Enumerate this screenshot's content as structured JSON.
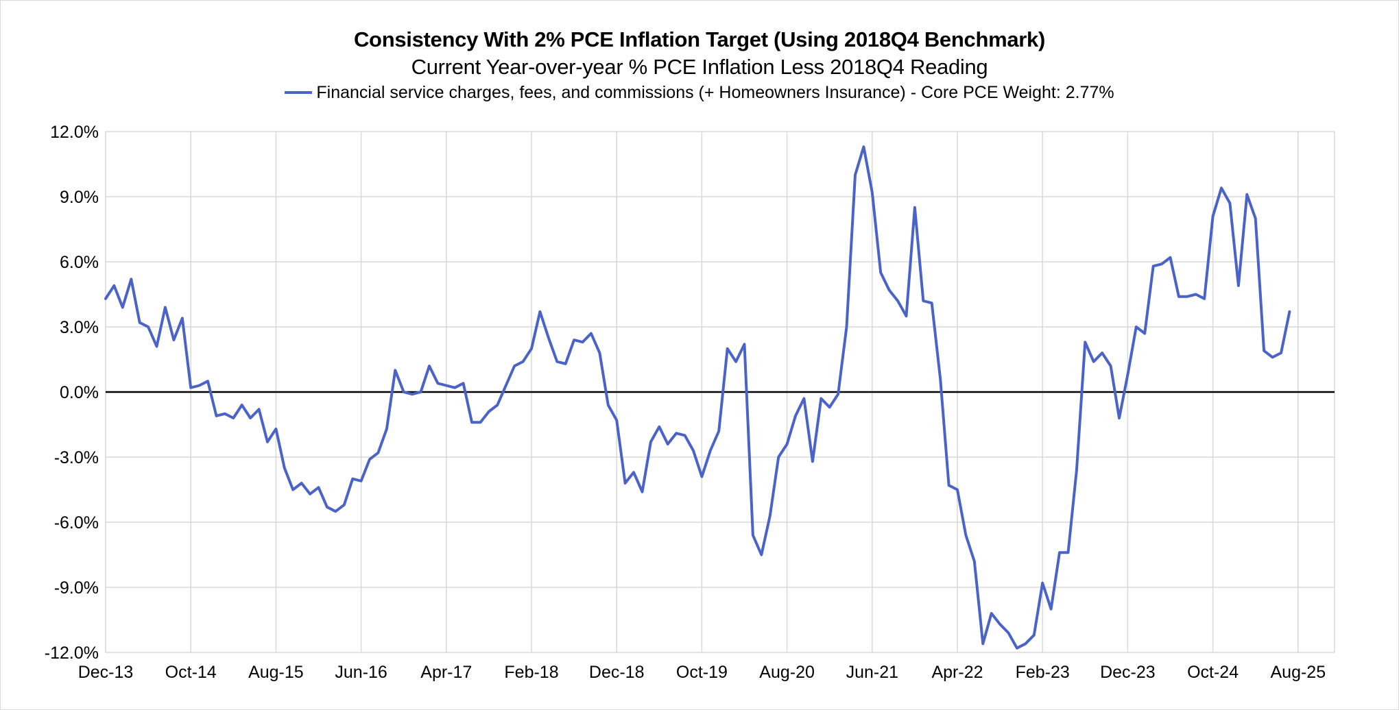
{
  "chart_data": {
    "type": "line",
    "title": "Consistency With 2% PCE Inflation Target (Using 2018Q4 Benchmark)",
    "subtitle": "Current Year-over-year % PCE Inflation Less 2018Q4 Reading",
    "xlabel": "",
    "ylabel": "",
    "ylim": [
      -12,
      12
    ],
    "y_ticks": [
      "12.0%",
      "9.0%",
      "6.0%",
      "3.0%",
      "0.0%",
      "-3.0%",
      "-6.0%",
      "-9.0%",
      "-12.0%"
    ],
    "x_ticks": [
      "Dec-13",
      "Oct-14",
      "Aug-15",
      "Jun-16",
      "Apr-17",
      "Feb-18",
      "Dec-18",
      "Oct-19",
      "Aug-20",
      "Jun-21",
      "Apr-22",
      "Feb-23",
      "Dec-23",
      "Oct-24",
      "Aug-25"
    ],
    "grid": true,
    "legend_position": "top",
    "series": [
      {
        "name": "Financial service charges, fees, and commissions (+ Homeowners Insurance) - Core PCE Weight: 2.77%",
        "color": "#4a63c9",
        "start": "Dec-13",
        "frequency": "monthly",
        "values": [
          4.3,
          4.9,
          3.9,
          5.2,
          3.2,
          3.0,
          2.1,
          3.9,
          2.4,
          3.4,
          0.2,
          0.3,
          0.5,
          -1.1,
          -1.0,
          -1.2,
          -0.6,
          -1.2,
          -0.8,
          -2.3,
          -1.7,
          -3.5,
          -4.5,
          -4.2,
          -4.7,
          -4.4,
          -5.3,
          -5.5,
          -5.2,
          -4.0,
          -4.1,
          -3.1,
          -2.8,
          -1.7,
          1.0,
          0.0,
          -0.1,
          0.0,
          1.2,
          0.4,
          0.3,
          0.2,
          0.4,
          -1.4,
          -1.4,
          -0.9,
          -0.6,
          0.3,
          1.2,
          1.4,
          2.0,
          3.7,
          2.5,
          1.4,
          1.3,
          2.4,
          2.3,
          2.7,
          1.8,
          -0.6,
          -1.3,
          -4.2,
          -3.7,
          -4.6,
          -2.3,
          -1.6,
          -2.4,
          -1.9,
          -2.0,
          -2.7,
          -3.9,
          -2.7,
          -1.8,
          2.0,
          1.4,
          2.2,
          -6.6,
          -7.5,
          -5.7,
          -3.0,
          -2.4,
          -1.1,
          -0.3,
          -3.2,
          -0.3,
          -0.7,
          -0.1,
          3.0,
          10.0,
          11.3,
          9.2,
          5.5,
          4.7,
          4.2,
          3.5,
          8.5,
          4.2,
          4.1,
          0.6,
          -4.3,
          -4.5,
          -6.6,
          -7.8,
          -11.6,
          -10.2,
          -10.7,
          -11.1,
          -11.8,
          -11.6,
          -11.2,
          -8.8,
          -10.0,
          -7.4,
          -7.4,
          -3.6,
          2.3,
          1.4,
          1.8,
          1.2,
          -1.2,
          0.8,
          3.0,
          2.7,
          5.8,
          5.9,
          6.2,
          4.4,
          4.4,
          4.5,
          4.3,
          8.1,
          9.4,
          8.7,
          4.9,
          9.1,
          8.0,
          1.9,
          1.6,
          1.8,
          3.7
        ]
      }
    ]
  }
}
